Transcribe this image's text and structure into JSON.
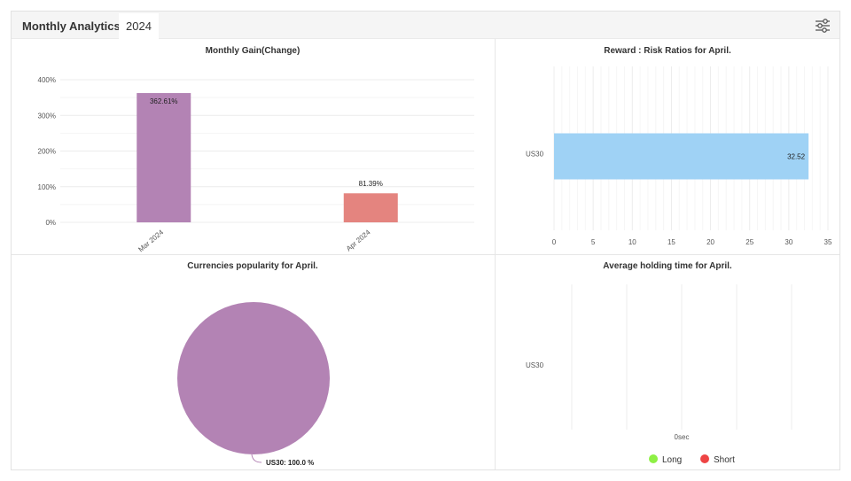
{
  "header": {
    "title": "Monthly Analytics",
    "year_tab": "2024",
    "settings_icon": "sliders-icon"
  },
  "chart_data": [
    {
      "id": "monthly_gain",
      "type": "bar",
      "title": "Monthly Gain(Change)",
      "categories": [
        "Mar 2024",
        "Apr 2024"
      ],
      "values": [
        362.61,
        81.39
      ],
      "value_labels": [
        "362.61%",
        "81.39%"
      ],
      "colors": [
        "#b383b4",
        "#e4847f"
      ],
      "ylim": [
        0,
        400
      ],
      "yticks": [
        0,
        100,
        200,
        300,
        400
      ],
      "ytick_labels": [
        "0%",
        "100%",
        "200%",
        "300%",
        "400%"
      ],
      "grid": true
    },
    {
      "id": "reward_risk",
      "type": "bar",
      "orientation": "horizontal",
      "title": "Reward : Risk Ratios for April.",
      "categories": [
        "US30"
      ],
      "values": [
        32.52
      ],
      "value_labels": [
        "32.52"
      ],
      "color": "#9fd2f5",
      "xlim": [
        0,
        35
      ],
      "xticks": [
        0,
        5,
        10,
        15,
        20,
        25,
        30,
        35
      ],
      "xtick_labels": [
        "0",
        "5",
        "10",
        "15",
        "20",
        "25",
        "30",
        "35"
      ],
      "grid": true
    },
    {
      "id": "currency_popularity",
      "type": "pie",
      "title": "Currencies popularity for April.",
      "slices": [
        {
          "label": "US30: 100.0 %",
          "value": 100.0,
          "color": "#b383b4"
        }
      ]
    },
    {
      "id": "holding_time",
      "type": "bar",
      "orientation": "horizontal",
      "title": "Average holding time for April.",
      "categories": [
        "US30"
      ],
      "x_tick_labels": [
        "0sec"
      ],
      "series": [
        {
          "name": "Long",
          "color": "#8ef045",
          "values": [
            0
          ]
        },
        {
          "name": "Short",
          "color": "#ee4444",
          "values": [
            0
          ]
        }
      ],
      "legend": "bottom",
      "grid": true
    }
  ]
}
